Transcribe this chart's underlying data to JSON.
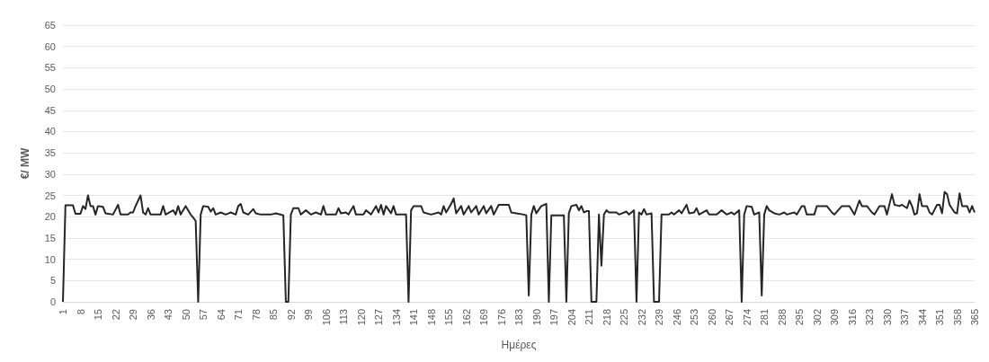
{
  "chart_data": {
    "type": "line",
    "xlabel": "Ημέρες",
    "ylabel": "€/ MW",
    "xlim": [
      1,
      365
    ],
    "xticks": [
      1,
      8,
      15,
      22,
      29,
      36,
      43,
      50,
      57,
      64,
      71,
      78,
      85,
      92,
      99,
      106,
      113,
      120,
      127,
      134,
      141,
      148,
      155,
      162,
      169,
      176,
      183,
      190,
      197,
      204,
      211,
      218,
      225,
      232,
      239,
      246,
      253,
      260,
      267,
      274,
      281,
      288,
      295,
      302,
      309,
      316,
      323,
      330,
      337,
      344,
      351,
      358,
      365
    ],
    "ylim": [
      0,
      65
    ],
    "yticks": [
      0,
      5,
      10,
      15,
      20,
      25,
      30,
      35,
      40,
      45,
      50,
      55,
      60,
      65
    ],
    "grid": "y",
    "marker": "none",
    "line_style": "solid",
    "series": [
      {
        "color": "#262626",
        "x": [
          1,
          2,
          5,
          6,
          8,
          9,
          10,
          11,
          12,
          13,
          14,
          15,
          17,
          18,
          21,
          23,
          24,
          27,
          28,
          29,
          30,
          32,
          33,
          34,
          35,
          36,
          40,
          41,
          42,
          45,
          46,
          47,
          48,
          50,
          52,
          53,
          54,
          55,
          56,
          57,
          59,
          60,
          61,
          62,
          64,
          66,
          68,
          70,
          71,
          72,
          73,
          75,
          77,
          78,
          80,
          84,
          86,
          89,
          90,
          91,
          92,
          93,
          95,
          96,
          98,
          100,
          102,
          104,
          105,
          106,
          110,
          111,
          112,
          114,
          115,
          117,
          118,
          121,
          122,
          124,
          126,
          127,
          128,
          129,
          130,
          132,
          133,
          134,
          138,
          139,
          140,
          141,
          144,
          145,
          148,
          151,
          152,
          153,
          154,
          156,
          157,
          158,
          160,
          161,
          163,
          164,
          166,
          167,
          169,
          170,
          172,
          173,
          175,
          179,
          180,
          182,
          185,
          186,
          187,
          188,
          189,
          190,
          192,
          194,
          195,
          196,
          201,
          202,
          203,
          204,
          206,
          207,
          208,
          209,
          210,
          211,
          212,
          214,
          215,
          216,
          217,
          218,
          219,
          222,
          223,
          226,
          227,
          229,
          230,
          231,
          232,
          233,
          234,
          236,
          237,
          239,
          240,
          243,
          244,
          245,
          247,
          248,
          250,
          251,
          253,
          254,
          255,
          258,
          259,
          262,
          264,
          266,
          268,
          269,
          271,
          272,
          273,
          274,
          276,
          277,
          279,
          280,
          281,
          282,
          283,
          285,
          287,
          289,
          290,
          293,
          294,
          296,
          297,
          298,
          301,
          302,
          306,
          308,
          309,
          312,
          315,
          317,
          319,
          320,
          322,
          324,
          325,
          327,
          329,
          330,
          332,
          333,
          335,
          336,
          338,
          339,
          340,
          341,
          342,
          343,
          344,
          346,
          347,
          348,
          350,
          351,
          352,
          353,
          354,
          355,
          357,
          358,
          359,
          360,
          362,
          363,
          364,
          365
        ],
        "values": [
          0,
          22.7,
          22.7,
          20.7,
          20.7,
          22.5,
          21.8,
          25,
          22.5,
          22.5,
          20.5,
          22.5,
          22.3,
          20.8,
          20.5,
          22.8,
          20.5,
          20.5,
          21,
          21,
          22.5,
          25,
          21,
          20.5,
          22,
          20.5,
          20.5,
          22.5,
          20.5,
          21.5,
          20.5,
          22.5,
          20.5,
          22.5,
          20.5,
          19.8,
          19,
          0,
          20.5,
          22.5,
          22.3,
          21.2,
          22,
          20.5,
          21,
          20.5,
          21,
          20.5,
          22.5,
          23,
          21,
          20.5,
          21.8,
          20.8,
          20.5,
          20.5,
          20.8,
          20.3,
          0,
          0,
          20.5,
          22,
          22,
          20.5,
          21.5,
          20.5,
          21,
          20.5,
          22.5,
          20.5,
          20.5,
          22,
          20.8,
          21,
          20.5,
          22.5,
          20.5,
          20.5,
          21.5,
          20.5,
          22.5,
          21,
          22.8,
          20.5,
          22.5,
          20.8,
          22.5,
          20.5,
          20.5,
          0,
          21.5,
          22.5,
          22.5,
          21,
          20.5,
          21,
          20.5,
          22.5,
          21,
          23,
          24.3,
          20.8,
          22.5,
          20.5,
          22.5,
          21,
          22.5,
          20.5,
          22.5,
          20.8,
          22.5,
          20.5,
          22.8,
          22.8,
          21,
          20.8,
          20.5,
          20.3,
          1.5,
          20.5,
          22.5,
          20.8,
          22.5,
          23,
          0,
          20.3,
          20.3,
          0,
          20.8,
          22.5,
          22.8,
          21.5,
          22.5,
          21,
          21.3,
          21.3,
          0,
          0,
          20.5,
          8.5,
          20.5,
          21.5,
          21,
          21,
          20.5,
          21.2,
          20.5,
          21.5,
          0,
          21,
          20.5,
          21.8,
          20.5,
          20.8,
          0,
          0,
          20.5,
          20.5,
          21,
          20.5,
          21.5,
          20.8,
          22.8,
          20.8,
          21,
          22,
          20.5,
          21.5,
          20.5,
          20.5,
          21.5,
          20.5,
          21,
          20.5,
          21.5,
          0,
          20.5,
          22.5,
          22.3,
          20.5,
          21,
          1.5,
          20.5,
          22.5,
          21.5,
          20.8,
          20.5,
          21,
          20.5,
          21,
          20.5,
          22.5,
          22.5,
          20.5,
          20.5,
          22.5,
          22.5,
          21,
          20.5,
          22.5,
          22.5,
          20.5,
          23.8,
          22.5,
          22.5,
          21,
          20.5,
          22.5,
          22.5,
          20.5,
          25.3,
          22.8,
          22.5,
          22.8,
          22,
          23.8,
          22.5,
          20.5,
          20.8,
          25.3,
          22.5,
          22.5,
          21,
          20.5,
          22.8,
          22.8,
          20.8,
          25.8,
          25.3,
          22.8,
          21,
          20.8,
          25.5,
          22.5,
          22.5,
          21,
          22.5,
          21
        ]
      }
    ]
  }
}
